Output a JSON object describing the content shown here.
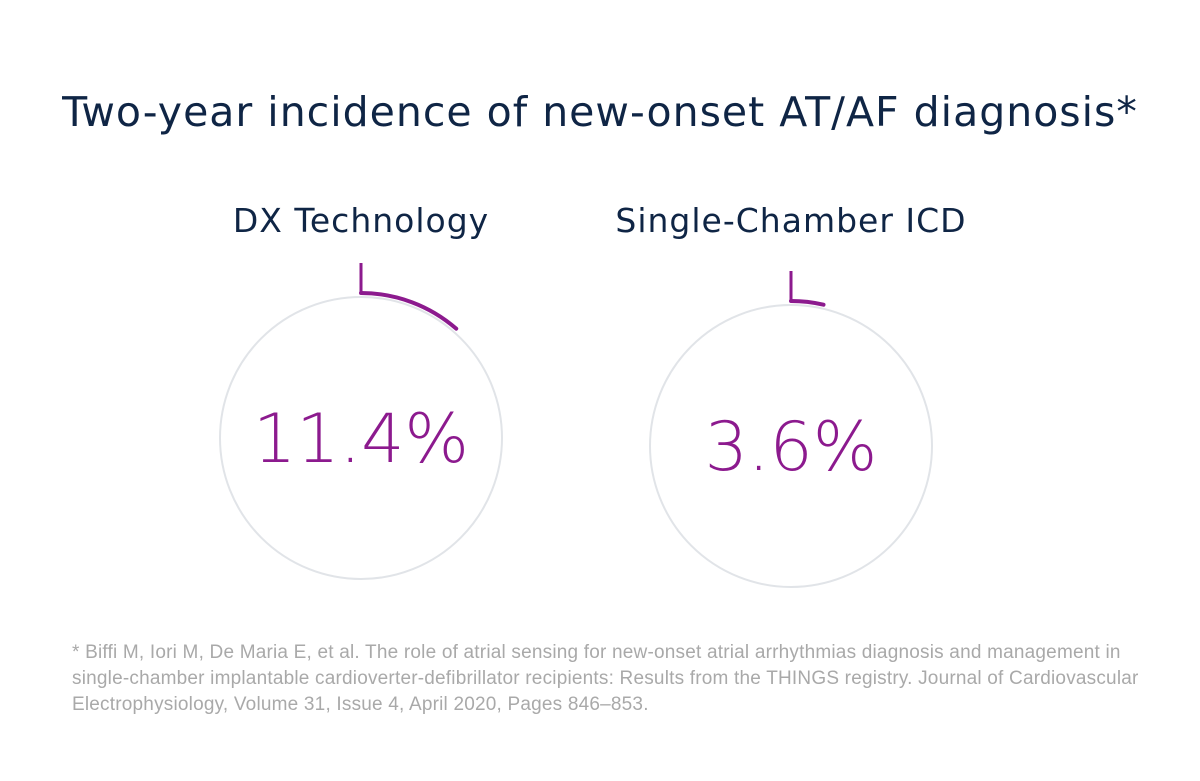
{
  "title": "Two-year incidence of new-onset AT/AF diagnosis*",
  "colors": {
    "title": "#0f2545",
    "value": "#8c1a8e",
    "ring": "#e1e4e8",
    "footnote": "#a9a9a9"
  },
  "chart_data": {
    "type": "pie",
    "title": "Two-year incidence of new-onset AT/AF diagnosis*",
    "unit": "%",
    "series": [
      {
        "name": "DX Technology",
        "value": 11.4,
        "label": "11.4%"
      },
      {
        "name": "Single-Chamber ICD",
        "value": 3.6,
        "label": "3.6%"
      }
    ]
  },
  "footnote": "* Biffi M, Iori M, De Maria E, et al. The role of atrial sensing for new-onset atrial arrhythmias diagnosis and management in single-chamber implantable cardioverter-defibrillator recipients: Results from  the THINGS registry. Journal of Cardiovascular Electrophysiology, Volume 31, Issue 4, April 2020, Pages 846–853."
}
